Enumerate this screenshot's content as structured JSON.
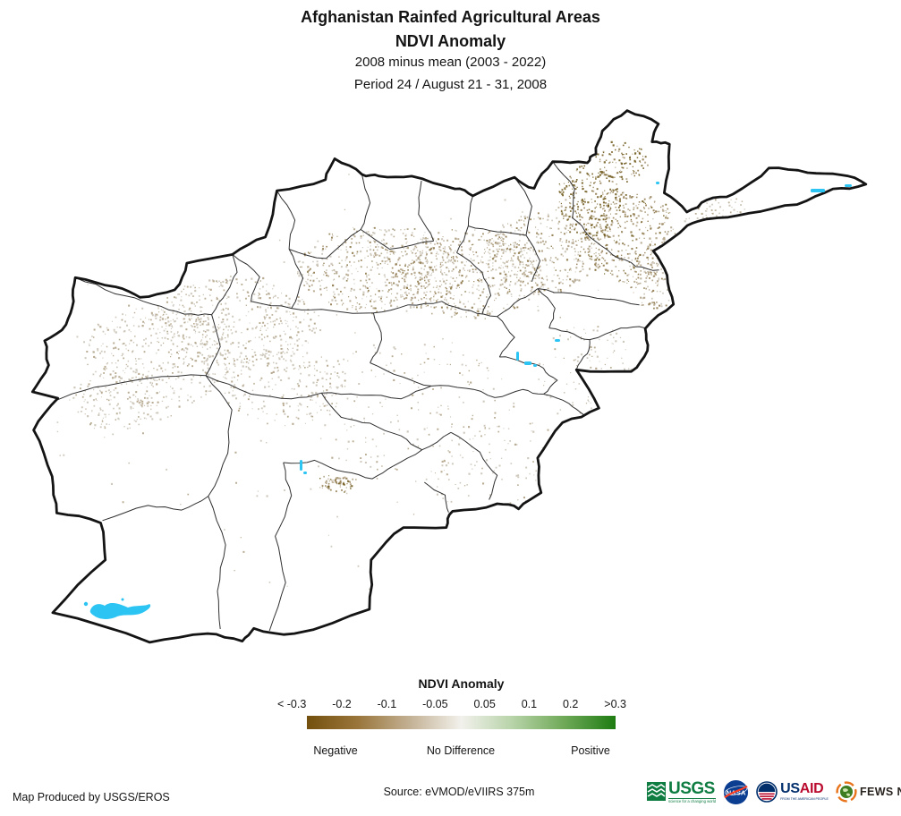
{
  "header": {
    "title_line1": "Afghanistan Rainfed Agricultural Areas",
    "title_line2": "NDVI Anomaly",
    "subtitle_line1": "2008 minus mean (2003 - 2022)",
    "subtitle_line2": "Period 24 / August 21 - 31, 2008"
  },
  "legend": {
    "title": "NDVI Anomaly",
    "tick_labels": [
      "< -0.3",
      "-0.2",
      "-0.1",
      "-0.05",
      "0.05",
      "0.1",
      "0.2",
      ">0.3"
    ],
    "category_labels": [
      "Negative",
      "No Difference",
      "Positive"
    ],
    "gradient_stops": [
      "#74500e",
      "#9a763c",
      "#c3b194",
      "#f2f1ec",
      "#b7d3a8",
      "#6fa958",
      "#1e7c12"
    ]
  },
  "footer": {
    "produced_by": "Map Produced by USGS/EROS",
    "source": "Source: eVMOD/eVIIRS 375m",
    "logos": [
      {
        "name": "usgs-logo",
        "text": "USGS",
        "tagline": "science for a changing world"
      },
      {
        "name": "nasa-logo",
        "text": "NASA"
      },
      {
        "name": "usaid-logo",
        "text_us": "US",
        "text_aid": "AID",
        "tagline": "FROM THE AMERICAN PEOPLE"
      },
      {
        "name": "fewsnet-logo",
        "text": "FEWS NET"
      }
    ]
  },
  "colors": {
    "text": "#141414",
    "country_border": "#141414",
    "province_border": "#303030",
    "land_fill": "#ffffff",
    "water": "#2bc4f3",
    "speckle_light": "#c7c0b1",
    "speckle_tan": "#ad9e80",
    "speckle_brown": "#8a7343",
    "speckle_dark": "#6a5513",
    "usgs_green": "#0f7c42",
    "nasa_blue": "#0b3d91",
    "nasa_red": "#fc3d21",
    "usaid_blue": "#002f6c",
    "usaid_red": "#ba0c2f",
    "fews_orange": "#e8731a",
    "fews_globe_green": "#3f7d23"
  }
}
